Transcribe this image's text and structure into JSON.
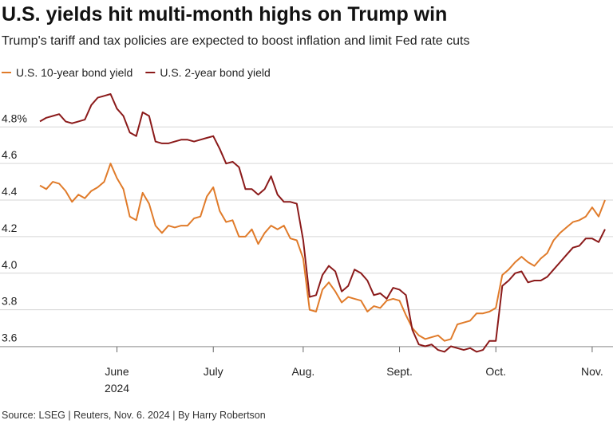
{
  "chart_data": {
    "type": "line",
    "title": "U.S. yields hit multi-month highs on Trump win",
    "subtitle": "Trump's tariff and tax policies are expected to boost inflation and limit Fed rate cuts",
    "source": "Source: LSEG | Reuters, Nov. 6. 2024 | By Harry Robertson",
    "year_label": "2024",
    "categories": [
      null,
      null,
      null,
      null,
      null,
      null,
      null,
      null,
      null,
      null,
      null,
      null,
      "June",
      null,
      null,
      null,
      null,
      null,
      null,
      null,
      null,
      null,
      null,
      null,
      null,
      null,
      null,
      "July",
      null,
      null,
      null,
      null,
      null,
      null,
      null,
      null,
      null,
      null,
      null,
      null,
      null,
      "Aug.",
      null,
      null,
      null,
      null,
      null,
      null,
      null,
      null,
      null,
      null,
      null,
      null,
      null,
      null,
      "Sept.",
      null,
      null,
      null,
      null,
      null,
      null,
      null,
      null,
      null,
      null,
      null,
      null,
      null,
      null,
      "Oct.",
      null,
      null,
      null,
      null,
      null,
      null,
      null,
      null,
      null,
      null,
      null,
      null,
      null,
      null,
      "Nov.",
      null,
      null
    ],
    "series": [
      {
        "name": "U.S. 10-year bond yield",
        "color": "#e07b2a",
        "values": [
          4.48,
          4.46,
          4.5,
          4.49,
          4.45,
          4.39,
          4.43,
          4.41,
          4.45,
          4.47,
          4.5,
          4.6,
          4.52,
          4.46,
          4.31,
          4.29,
          4.44,
          4.38,
          4.26,
          4.22,
          4.26,
          4.25,
          4.26,
          4.26,
          4.3,
          4.31,
          4.42,
          4.47,
          4.34,
          4.28,
          4.29,
          4.2,
          4.2,
          4.24,
          4.16,
          4.22,
          4.26,
          4.24,
          4.26,
          4.19,
          4.18,
          4.08,
          3.8,
          3.79,
          3.91,
          3.95,
          3.9,
          3.84,
          3.87,
          3.86,
          3.85,
          3.79,
          3.82,
          3.81,
          3.85,
          3.86,
          3.85,
          3.77,
          3.7,
          3.66,
          3.64,
          3.65,
          3.66,
          3.63,
          3.64,
          3.72,
          3.73,
          3.74,
          3.78,
          3.78,
          3.79,
          3.81,
          3.99,
          4.02,
          4.06,
          4.09,
          4.06,
          4.04,
          4.08,
          4.11,
          4.18,
          4.22,
          4.25,
          4.28,
          4.29,
          4.31,
          4.36,
          4.31,
          4.4
        ]
      },
      {
        "name": "U.S. 2-year bond yield",
        "color": "#8b1a1a",
        "values": [
          4.83,
          4.85,
          4.86,
          4.87,
          4.83,
          4.82,
          4.83,
          4.84,
          4.92,
          4.96,
          4.97,
          4.98,
          4.9,
          4.86,
          4.77,
          4.75,
          4.88,
          4.86,
          4.72,
          4.71,
          4.71,
          4.72,
          4.73,
          4.73,
          4.72,
          4.73,
          4.74,
          4.75,
          4.68,
          4.6,
          4.61,
          4.58,
          4.46,
          4.46,
          4.43,
          4.46,
          4.53,
          4.43,
          4.39,
          4.39,
          4.38,
          4.18,
          3.87,
          3.88,
          3.99,
          4.04,
          4.01,
          3.9,
          3.93,
          4.02,
          4.0,
          3.96,
          3.88,
          3.89,
          3.86,
          3.92,
          3.91,
          3.88,
          3.69,
          3.61,
          3.6,
          3.61,
          3.58,
          3.57,
          3.6,
          3.59,
          3.58,
          3.59,
          3.57,
          3.58,
          3.63,
          3.63,
          3.93,
          3.96,
          4.0,
          4.01,
          3.95,
          3.96,
          3.96,
          3.98,
          4.02,
          4.06,
          4.1,
          4.14,
          4.15,
          4.19,
          4.19,
          4.17,
          4.24
        ]
      }
    ],
    "ylim": [
      3.55,
      4.98
    ],
    "yticks": [
      3.6,
      3.8,
      {
        "value": 4,
        "label": "4.0"
      },
      4.2,
      4.4,
      4.6,
      {
        "value": 4.8,
        "label": "4.8%"
      }
    ],
    "grid": true
  }
}
